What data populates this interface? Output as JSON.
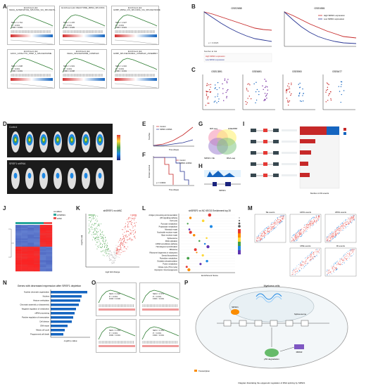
{
  "panel_labels": [
    "A",
    "B",
    "C",
    "D",
    "E",
    "F",
    "G",
    "H",
    "I",
    "J",
    "K",
    "L",
    "M",
    "N",
    "O",
    "P"
  ],
  "panelA": {
    "plots": [
      {
        "title": "Enrichment plot: KEGG_ALTERNATIVE_SPLICING_VIA_SPLICEOS...",
        "nes": "NES = 1.744",
        "p": "P < 0.001",
        "fdr": "FDR < 0.001"
      },
      {
        "title": "Enrichment plot: REACTOME_MRNA_SPLICING",
        "nes": "NES = 1.478",
        "p": "P < 0.001",
        "fdr": "FDR = 0.029"
      },
      {
        "title": "Enrichment plot: GOBP_MRNA_CIS_SPLICING_VIA_SPLICEOSOME",
        "nes": "NES = 1.627",
        "p": "P < 0.001",
        "fdr": "FDR = 0.021"
      },
      {
        "title": "Enrichment plot: GOCC_CATALYTIC_STEP_2_SPLICEOSOME",
        "nes": "NES = 1.638",
        "p": "P < 0.001",
        "fdr": "FDR < 0.001"
      },
      {
        "title": "Enrichment plot: KEGG_SPLICEOSOME_COMPLEX",
        "nes": "NES = 1.619",
        "p": "P < 0.001",
        "fdr": "FDR = 0.008"
      },
      {
        "title": "Enrichment plot: GOBP_SPLICEOSOMAL_COMPLEX_ASSEMBLY",
        "nes": "NES = 1.616",
        "p": "P < 0.001",
        "fdr": "FDR < 0.001"
      }
    ]
  },
  "panelB": {
    "left_title": "GSE2658",
    "right_title": "GSE4581",
    "legend_high": "High SRSF1 expression",
    "legend_low": "Low SRSF1 expression",
    "pval": "p = 0.0026",
    "risk_header": "Number at risk",
    "colors": {
      "high": "#c62828",
      "low": "#283593"
    }
  },
  "panelC": {
    "titles": [
      "GSE13591",
      "GSE6691",
      "GSE5900",
      "GSE6477"
    ],
    "ylabel": "SRSF1 expression"
  },
  "panelD": {
    "control_label": "Control",
    "srsf1_label": "SRSF1 shRNA"
  },
  "panelE": {
    "legend": [
      "Control",
      "SRSF1 shRNA"
    ],
    "ylabel": "Total flux",
    "xlabel": "Time (Days)"
  },
  "panelF": {
    "legend": [
      "Control",
      "SRSF1 shRNA"
    ],
    "ylabel": "Percent survival",
    "xlabel": "Time (Days)",
    "pval": "p = 0.0002"
  },
  "panelG": {
    "labels": [
      "RIP-seq",
      "GSE2658",
      "SRSF1 OE",
      "RNA-seq"
    ]
  },
  "panelH": {
    "label": "SRSF1"
  },
  "panelI": {
    "ylabel": "Splicing events",
    "xlabel": "Number of AS events"
  },
  "panelJ": {
    "legend_title": "condition",
    "groups": [
      "shSRSF1",
      "shNC"
    ]
  },
  "panelK": {
    "title": "shSRSF1 vs shNC",
    "xlabel": "log2 fold change",
    "ylabel": "-log10 p.adj"
  },
  "panelL": {
    "title": "shSRSF1 vs NC KEGG Enrichment top 20",
    "xlabel": "Enrichment Score",
    "terms": [
      "Antigen processing and presentation",
      "p53 signaling pathway",
      "Cell cycle",
      "Pyruvate metabolism",
      "Propanoate metabolism",
      "Mismatch repair",
      "Nucleotide excision repair",
      "Base excision repair",
      "Spliceosome",
      "DNA replication",
      "mRNA surveillance pathway",
      "Homologous recombination",
      "Ribosome",
      "Ribosome biogenesis in eukaryotes",
      "Steroid biosynthesis",
      "Pyrimidine metabolism",
      "Oxidative phosphorylation",
      "Purine metabolism",
      "Citrate cycle (TCA cycle)",
      "Glycolysis / Gluconeogenesis"
    ]
  },
  "panelM": {
    "titles": [
      "SE events",
      "A3SS events",
      "A5SS events",
      "MXE events",
      "RI events"
    ]
  },
  "panelN": {
    "title": "Genes with decreased expression after SRSF1 depletion",
    "xlabel": "-log10 p-value",
    "terms": [
      "Nuclear chromatin organization",
      "Nucleus",
      "Histone methylation",
      "Chromatin assembly or disassembly",
      "Negative regulation of metabolism",
      "mRNA processing",
      "Positive regulation of transcription",
      "Cell division",
      "DNA repair",
      "Mitotic cell cycle",
      "Programmed cell death"
    ]
  },
  "panelO": {
    "plots": [
      {
        "nes": "NES = 1.620",
        "p": "P < 0.001",
        "fdr": "FDR = 0.030"
      },
      {
        "nes": "NES = 1.573",
        "p": "P < 0.001",
        "fdr": "FDR < 0.001"
      },
      {
        "nes": "NES = 1.518",
        "p": "P < 0.001",
        "fdr": "FDR < 0.001"
      },
      {
        "nes": "NES = 1.561",
        "p": "P < 0.001",
        "fdr": "FDR < 0.001"
      }
    ]
  },
  "panelP": {
    "cell_label": "Myeloma cells",
    "caption": "Diagram illustrating the epigenetic regulation of RNA splicing by SRSF1",
    "labels": [
      "SRSF1",
      "Spliceosome",
      "p53 degradation",
      "MDM2",
      "Transcription"
    ]
  }
}
